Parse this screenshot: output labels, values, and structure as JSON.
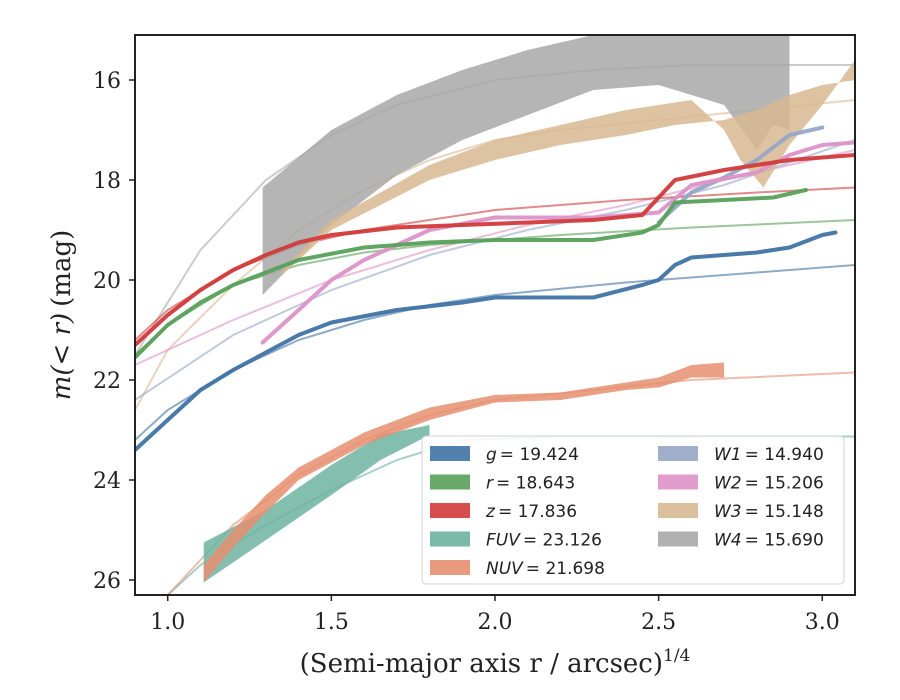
{
  "chart_data": {
    "type": "line",
    "xlabel": "(Semi-major axis r / arcsec)",
    "xlabel_sup": "1/4",
    "ylabel_pre": "m",
    "ylabel_math": "(< r)",
    "ylabel_post": "(mag)",
    "xlim": [
      0.9,
      3.1
    ],
    "ylim": [
      26.3,
      15.1
    ],
    "x_ticks": [
      1.0,
      1.5,
      2.0,
      2.5,
      3.0
    ],
    "x_tick_labels": [
      "1.0",
      "1.5",
      "2.0",
      "2.5",
      "3.0"
    ],
    "y_ticks": [
      16,
      18,
      20,
      22,
      24,
      26
    ],
    "y_tick_labels": [
      "16",
      "18",
      "20",
      "22",
      "24",
      "26"
    ],
    "legend": {
      "position": "lower-right",
      "columns": 2,
      "entries": [
        {
          "band": "g",
          "label": "= 19.424"
        },
        {
          "band": "r",
          "label": "= 18.643"
        },
        {
          "band": "z",
          "label": "= 17.836"
        },
        {
          "band": "FUV",
          "label": "= 23.126"
        },
        {
          "band": "NUV",
          "label": "= 21.698"
        },
        {
          "band": "W1",
          "label": "= 14.940"
        },
        {
          "band": "W2",
          "label": "= 15.206"
        },
        {
          "band": "W3",
          "label": "= 15.148"
        },
        {
          "band": "W4",
          "label": "= 15.690"
        }
      ]
    },
    "series": [
      {
        "name": "W4",
        "color": "#a8a8a8",
        "band_upper": [
          [
            1.29,
            18.15
          ],
          [
            1.5,
            17.0
          ],
          [
            1.7,
            16.3
          ],
          [
            1.9,
            15.8
          ],
          [
            2.1,
            15.4
          ],
          [
            2.3,
            15.1
          ],
          [
            2.9,
            15.1
          ]
        ],
        "band_lower": [
          [
            1.29,
            20.3
          ],
          [
            1.5,
            18.9
          ],
          [
            1.7,
            17.9
          ],
          [
            1.9,
            17.2
          ],
          [
            2.1,
            16.7
          ],
          [
            2.3,
            16.2
          ],
          [
            2.5,
            16.1
          ],
          [
            2.7,
            16.5
          ],
          [
            2.8,
            17.4
          ],
          [
            2.85,
            16.9
          ],
          [
            2.9,
            17.0
          ]
        ],
        "fit": [
          [
            0.9,
            21.5
          ],
          [
            1.1,
            19.4
          ],
          [
            1.3,
            18.0
          ],
          [
            1.5,
            17.1
          ],
          [
            1.7,
            16.5
          ],
          [
            2.0,
            16.0
          ],
          [
            2.3,
            15.8
          ],
          [
            2.6,
            15.7
          ],
          [
            3.1,
            15.7
          ]
        ]
      },
      {
        "name": "W3",
        "color": "#d8b992",
        "band_upper": [
          [
            1.35,
            19.9
          ],
          [
            1.5,
            19.0
          ],
          [
            1.8,
            18.0
          ],
          [
            2.0,
            17.6
          ],
          [
            2.2,
            17.3
          ],
          [
            2.4,
            17.1
          ],
          [
            2.55,
            16.9
          ],
          [
            2.7,
            16.8
          ],
          [
            2.8,
            16.6
          ],
          [
            2.9,
            16.3
          ],
          [
            3.0,
            16.1
          ],
          [
            3.1,
            16.0
          ]
        ],
        "band_lower": [
          [
            1.35,
            19.8
          ],
          [
            1.5,
            18.8
          ],
          [
            1.8,
            17.7
          ],
          [
            2.0,
            17.2
          ],
          [
            2.2,
            16.9
          ],
          [
            2.4,
            16.6
          ],
          [
            2.5,
            16.5
          ],
          [
            2.6,
            16.4
          ],
          [
            2.7,
            17.0
          ],
          [
            2.75,
            17.6
          ],
          [
            2.82,
            18.15
          ],
          [
            2.9,
            17.3
          ],
          [
            3.0,
            16.5
          ],
          [
            3.1,
            15.6
          ]
        ],
        "fit": [
          [
            0.9,
            22.6
          ],
          [
            1.0,
            21.4
          ],
          [
            1.2,
            20.1
          ],
          [
            1.4,
            19.0
          ],
          [
            1.6,
            18.2
          ],
          [
            1.8,
            17.6
          ],
          [
            2.0,
            17.2
          ],
          [
            2.2,
            17.0
          ],
          [
            2.5,
            16.8
          ],
          [
            2.8,
            16.6
          ],
          [
            3.1,
            16.4
          ]
        ]
      },
      {
        "name": "W1",
        "color": "#97a6c6",
        "data": [
          [
            2.5,
            18.85
          ],
          [
            2.6,
            18.25
          ],
          [
            2.7,
            17.95
          ],
          [
            2.8,
            17.6
          ],
          [
            2.9,
            17.1
          ],
          [
            3.0,
            16.95
          ]
        ],
        "fit": [
          [
            0.9,
            22.4
          ],
          [
            1.2,
            21.1
          ],
          [
            1.5,
            20.2
          ],
          [
            1.8,
            19.5
          ],
          [
            2.1,
            19.0
          ],
          [
            2.4,
            18.6
          ],
          [
            2.7,
            18.1
          ],
          [
            3.1,
            17.2
          ]
        ]
      },
      {
        "name": "W2",
        "color": "#dd92c8",
        "data": [
          [
            1.29,
            21.25
          ],
          [
            1.4,
            20.6
          ],
          [
            1.5,
            20.0
          ],
          [
            1.6,
            19.6
          ],
          [
            1.8,
            19.0
          ],
          [
            2.0,
            18.75
          ],
          [
            2.3,
            18.75
          ],
          [
            2.5,
            18.65
          ],
          [
            2.6,
            18.1
          ],
          [
            2.8,
            17.85
          ],
          [
            2.9,
            17.5
          ],
          [
            3.0,
            17.3
          ],
          [
            3.1,
            17.25
          ]
        ],
        "fit": [
          [
            0.9,
            21.7
          ],
          [
            1.2,
            20.8
          ],
          [
            1.5,
            20.0
          ],
          [
            1.8,
            19.4
          ],
          [
            2.1,
            18.9
          ],
          [
            2.4,
            18.5
          ],
          [
            2.7,
            18.0
          ],
          [
            3.1,
            17.4
          ]
        ]
      },
      {
        "name": "z",
        "color": "#d13b3b",
        "data": [
          [
            0.9,
            21.3
          ],
          [
            1.0,
            20.7
          ],
          [
            1.1,
            20.2
          ],
          [
            1.2,
            19.8
          ],
          [
            1.3,
            19.5
          ],
          [
            1.4,
            19.25
          ],
          [
            1.5,
            19.1
          ],
          [
            1.7,
            18.95
          ],
          [
            1.9,
            18.9
          ],
          [
            2.1,
            18.85
          ],
          [
            2.3,
            18.8
          ],
          [
            2.45,
            18.7
          ],
          [
            2.55,
            18.0
          ],
          [
            2.7,
            17.8
          ],
          [
            2.9,
            17.6
          ],
          [
            3.1,
            17.5
          ]
        ],
        "fit": [
          [
            0.9,
            21.2
          ],
          [
            1.0,
            20.6
          ],
          [
            1.2,
            19.8
          ],
          [
            1.4,
            19.3
          ],
          [
            1.6,
            19.0
          ],
          [
            1.8,
            18.8
          ],
          [
            2.0,
            18.6
          ],
          [
            2.4,
            18.4
          ],
          [
            2.8,
            18.25
          ],
          [
            3.1,
            18.15
          ]
        ]
      },
      {
        "name": "r",
        "color": "#58a05a",
        "data": [
          [
            0.9,
            21.55
          ],
          [
            1.0,
            20.9
          ],
          [
            1.1,
            20.45
          ],
          [
            1.2,
            20.1
          ],
          [
            1.3,
            19.85
          ],
          [
            1.4,
            19.6
          ],
          [
            1.6,
            19.35
          ],
          [
            1.8,
            19.25
          ],
          [
            2.0,
            19.2
          ],
          [
            2.3,
            19.2
          ],
          [
            2.45,
            19.05
          ],
          [
            2.5,
            18.9
          ],
          [
            2.55,
            18.45
          ],
          [
            2.7,
            18.4
          ],
          [
            2.85,
            18.35
          ],
          [
            2.95,
            18.2
          ]
        ],
        "fit": [
          [
            0.9,
            21.5
          ],
          [
            1.0,
            20.9
          ],
          [
            1.2,
            20.1
          ],
          [
            1.4,
            19.7
          ],
          [
            1.6,
            19.45
          ],
          [
            1.8,
            19.3
          ],
          [
            2.2,
            19.1
          ],
          [
            2.6,
            18.95
          ],
          [
            3.1,
            18.8
          ]
        ]
      },
      {
        "name": "g",
        "color": "#3f73a4",
        "data": [
          [
            0.9,
            23.4
          ],
          [
            1.0,
            22.8
          ],
          [
            1.1,
            22.2
          ],
          [
            1.2,
            21.8
          ],
          [
            1.3,
            21.45
          ],
          [
            1.4,
            21.1
          ],
          [
            1.5,
            20.85
          ],
          [
            1.7,
            20.6
          ],
          [
            1.9,
            20.45
          ],
          [
            2.0,
            20.35
          ],
          [
            2.3,
            20.35
          ],
          [
            2.45,
            20.1
          ],
          [
            2.5,
            20.0
          ],
          [
            2.55,
            19.7
          ],
          [
            2.6,
            19.55
          ],
          [
            2.8,
            19.45
          ],
          [
            2.9,
            19.35
          ],
          [
            3.0,
            19.1
          ],
          [
            3.04,
            19.05
          ]
        ],
        "fit": [
          [
            0.9,
            23.2
          ],
          [
            1.0,
            22.6
          ],
          [
            1.2,
            21.8
          ],
          [
            1.4,
            21.2
          ],
          [
            1.6,
            20.8
          ],
          [
            1.8,
            20.5
          ],
          [
            2.0,
            20.3
          ],
          [
            2.4,
            20.05
          ],
          [
            2.8,
            19.85
          ],
          [
            3.1,
            19.7
          ]
        ]
      },
      {
        "name": "FUV",
        "color": "#6db3a0",
        "band_upper": [
          [
            1.11,
            25.25
          ],
          [
            1.3,
            24.6
          ],
          [
            1.5,
            23.7
          ],
          [
            1.65,
            23.1
          ],
          [
            1.8,
            22.9
          ]
        ],
        "band_lower": [
          [
            1.11,
            26.05
          ],
          [
            1.3,
            25.2
          ],
          [
            1.5,
            24.3
          ],
          [
            1.65,
            23.6
          ],
          [
            1.8,
            23.1
          ]
        ],
        "fit": [
          [
            1.0,
            26.3
          ],
          [
            1.1,
            25.7
          ],
          [
            1.3,
            24.9
          ],
          [
            1.5,
            24.2
          ],
          [
            1.7,
            23.6
          ],
          [
            1.9,
            23.2
          ],
          [
            2.2,
            23.13
          ],
          [
            3.1,
            23.13
          ]
        ]
      },
      {
        "name": "NUV",
        "color": "#e68f70",
        "band_upper": [
          [
            1.11,
            25.7
          ],
          [
            1.2,
            25.0
          ],
          [
            1.3,
            24.3
          ],
          [
            1.4,
            23.75
          ],
          [
            1.6,
            23.05
          ],
          [
            1.8,
            22.55
          ],
          [
            2.0,
            22.3
          ],
          [
            2.2,
            22.25
          ],
          [
            2.4,
            22.05
          ],
          [
            2.5,
            21.95
          ],
          [
            2.6,
            21.7
          ],
          [
            2.7,
            21.65
          ]
        ],
        "band_lower": [
          [
            1.11,
            26.05
          ],
          [
            1.2,
            25.35
          ],
          [
            1.3,
            24.65
          ],
          [
            1.4,
            24.0
          ],
          [
            1.6,
            23.3
          ],
          [
            1.8,
            22.8
          ],
          [
            2.0,
            22.45
          ],
          [
            2.2,
            22.4
          ],
          [
            2.4,
            22.2
          ],
          [
            2.5,
            22.15
          ],
          [
            2.6,
            21.95
          ],
          [
            2.7,
            21.95
          ]
        ],
        "fit": [
          [
            1.0,
            26.3
          ],
          [
            1.1,
            25.6
          ],
          [
            1.2,
            24.9
          ],
          [
            1.4,
            23.9
          ],
          [
            1.6,
            23.2
          ],
          [
            1.8,
            22.7
          ],
          [
            2.0,
            22.4
          ],
          [
            2.3,
            22.2
          ],
          [
            2.6,
            22.0
          ],
          [
            3.1,
            21.85
          ]
        ]
      }
    ]
  }
}
